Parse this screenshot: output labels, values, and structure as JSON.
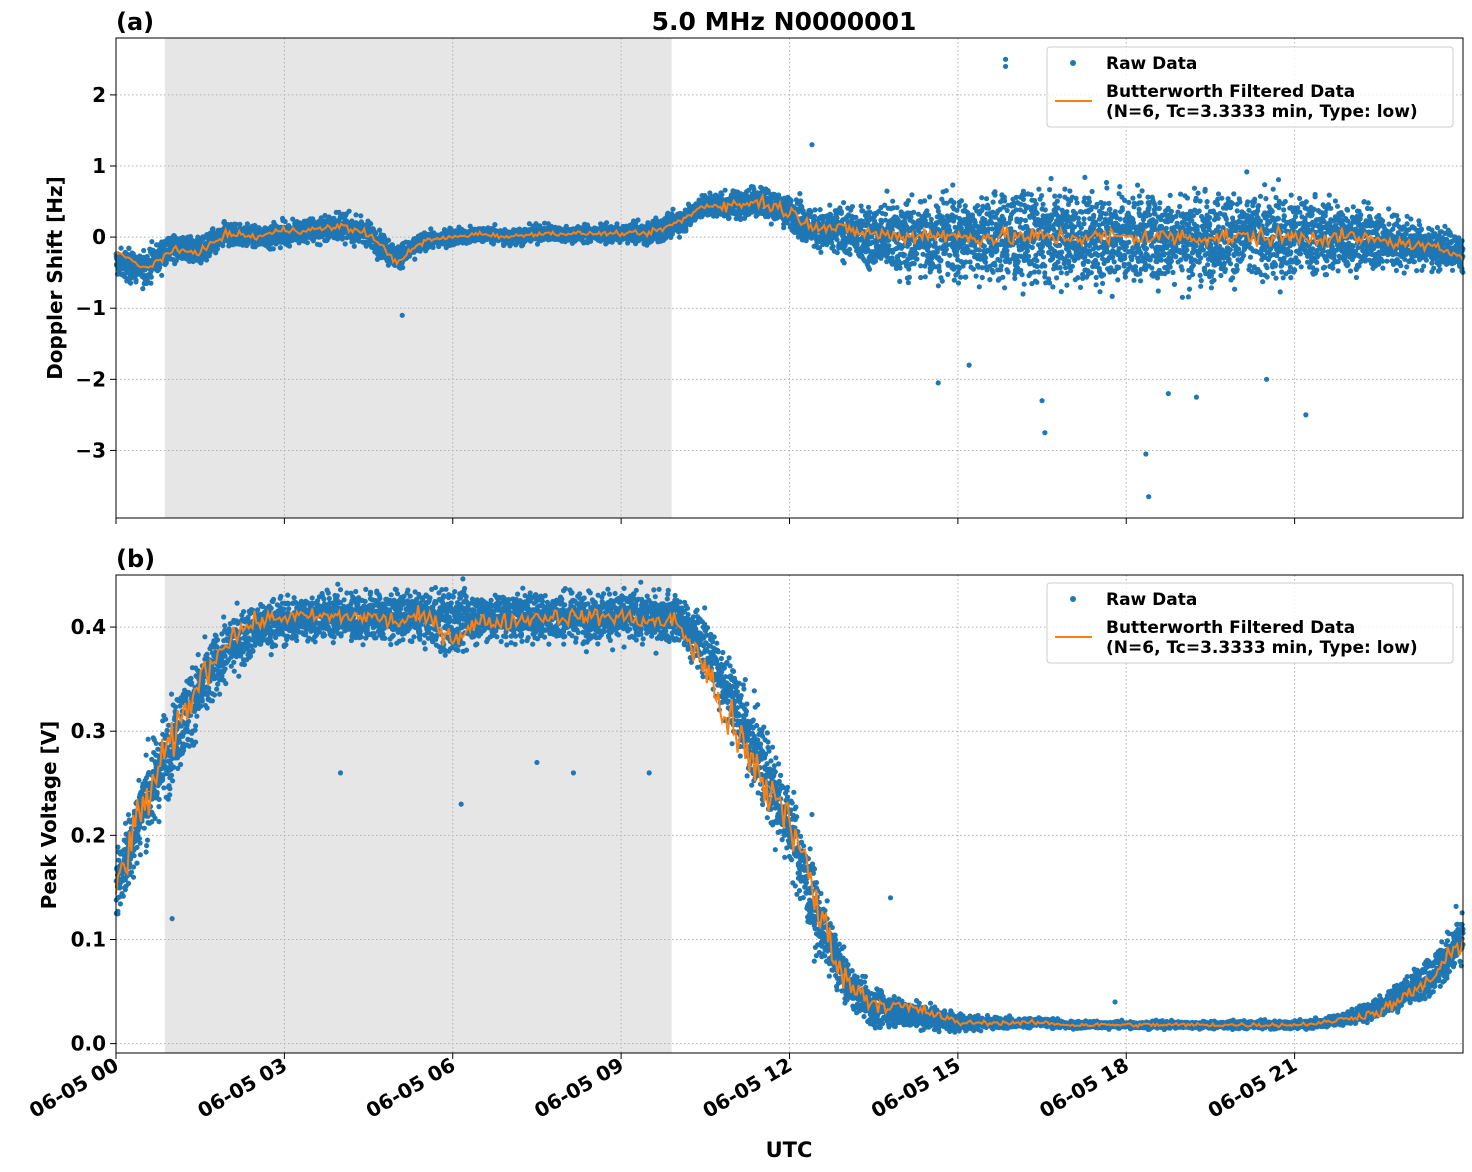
{
  "figure": {
    "title": "5.0 MHz N0000001",
    "xlabel": "UTC",
    "shade_label": ""
  },
  "colors": {
    "raw": "#1f77b4",
    "filtered": "#ff7f0e",
    "shade": "#e6e6e6",
    "grid": "#b0b0b0"
  },
  "chart_data": [
    {
      "type": "scatter",
      "panel_label": "(a)",
      "title": "5.0 MHz N0000001",
      "xlabel": "",
      "ylabel": "Doppler Shift [Hz]",
      "x_unit": "hours UTC",
      "xlim": [
        0,
        24
      ],
      "ylim": [
        -3.95,
        2.8
      ],
      "yticks": [
        2,
        1,
        0,
        -1,
        -2,
        -3
      ],
      "ytick_labels": [
        "2",
        "1",
        "0",
        "−1",
        "−2",
        "−3"
      ],
      "grid": true,
      "legend_position": "top-right",
      "shaded_interval": [
        0.87,
        9.9
      ],
      "series": [
        {
          "name": "Raw Data",
          "kind": "points",
          "x": [
            0,
            0.5,
            1,
            1.5,
            2,
            2.5,
            3,
            3.5,
            4,
            4.5,
            5,
            5.5,
            6,
            6.5,
            7,
            7.5,
            8,
            8.5,
            9,
            9.5,
            10,
            10.5,
            11,
            11.5,
            12,
            12.5,
            13,
            13.5,
            14,
            14.5,
            15,
            15.5,
            16,
            16.5,
            17,
            17.5,
            18,
            18.5,
            19,
            19.5,
            20,
            20.5,
            21,
            21.5,
            22,
            22.5,
            23,
            23.5,
            24
          ],
          "center": [
            -0.35,
            -0.45,
            -0.15,
            -0.2,
            0.05,
            0.0,
            0.05,
            0.1,
            0.15,
            0.05,
            -0.3,
            -0.05,
            0.0,
            0.05,
            0.0,
            0.05,
            0.05,
            0.05,
            0.05,
            0.05,
            0.2,
            0.45,
            0.45,
            0.5,
            0.35,
            0.1,
            0.05,
            0.0,
            0.0,
            0.0,
            0.0,
            0.0,
            0.0,
            0.0,
            0.0,
            0.0,
            0.0,
            0.0,
            0.0,
            0.0,
            0.0,
            0.0,
            0.0,
            0.0,
            0.0,
            -0.05,
            -0.1,
            -0.15,
            -0.25
          ],
          "spread": [
            0.35,
            0.4,
            0.3,
            0.3,
            0.3,
            0.25,
            0.3,
            0.3,
            0.35,
            0.3,
            0.3,
            0.2,
            0.2,
            0.2,
            0.2,
            0.2,
            0.2,
            0.2,
            0.2,
            0.25,
            0.3,
            0.3,
            0.35,
            0.4,
            0.4,
            0.5,
            0.6,
            0.75,
            0.9,
            1.0,
            1.1,
            1.1,
            1.1,
            1.1,
            1.1,
            1.1,
            1.1,
            1.1,
            1.1,
            1.1,
            1.1,
            1.05,
            1.0,
            0.95,
            0.85,
            0.7,
            0.6,
            0.5,
            0.45
          ],
          "outliers": [
            [
              15.85,
              2.5
            ],
            [
              15.85,
              2.4
            ],
            [
              16.55,
              -2.75
            ],
            [
              16.5,
              -2.3
            ],
            [
              18.35,
              -3.05
            ],
            [
              18.4,
              -3.65
            ],
            [
              18.75,
              -2.2
            ],
            [
              19.25,
              -2.25
            ],
            [
              20.5,
              -2.0
            ],
            [
              21.2,
              -2.5
            ],
            [
              14.65,
              -2.05
            ],
            [
              12.4,
              1.3
            ],
            [
              5.1,
              -1.1
            ],
            [
              15.2,
              -1.8
            ]
          ]
        },
        {
          "name": "Butterworth Filtered Data\n(N=6, Tc=3.3333 min, Type: low)",
          "kind": "line",
          "x": [
            0,
            0.5,
            1,
            1.5,
            2,
            2.5,
            3,
            3.5,
            4,
            4.5,
            5,
            5.5,
            6,
            6.5,
            7,
            7.5,
            8,
            8.5,
            9,
            9.5,
            10,
            10.5,
            11,
            11.5,
            12,
            12.5,
            13,
            13.5,
            14,
            14.5,
            15,
            15.5,
            16,
            16.5,
            17,
            17.5,
            18,
            18.5,
            19,
            19.5,
            20,
            20.5,
            21,
            21.5,
            22,
            22.5,
            23,
            23.5,
            24
          ],
          "y": [
            -0.2,
            -0.45,
            -0.2,
            -0.2,
            0.05,
            0.0,
            0.1,
            0.1,
            0.15,
            0.05,
            -0.35,
            -0.05,
            0.0,
            0.05,
            0.0,
            0.05,
            0.05,
            0.05,
            0.05,
            0.05,
            0.2,
            0.45,
            0.45,
            0.5,
            0.35,
            0.15,
            0.1,
            0.05,
            0.0,
            0.05,
            0.0,
            0.0,
            0.0,
            0.0,
            0.0,
            0.0,
            0.0,
            0.0,
            0.0,
            0.0,
            0.0,
            0.0,
            0.0,
            0.0,
            0.0,
            -0.05,
            -0.1,
            -0.15,
            -0.25
          ],
          "noise": [
            0.05,
            0.06,
            0.05,
            0.05,
            0.05,
            0.05,
            0.05,
            0.05,
            0.06,
            0.05,
            0.05,
            0.04,
            0.03,
            0.03,
            0.03,
            0.03,
            0.03,
            0.03,
            0.03,
            0.04,
            0.05,
            0.06,
            0.08,
            0.1,
            0.1,
            0.1,
            0.1,
            0.1,
            0.12,
            0.13,
            0.13,
            0.13,
            0.13,
            0.13,
            0.13,
            0.13,
            0.13,
            0.13,
            0.13,
            0.13,
            0.13,
            0.13,
            0.13,
            0.12,
            0.1,
            0.08,
            0.07,
            0.06,
            0.06
          ]
        }
      ]
    },
    {
      "type": "scatter",
      "panel_label": "(b)",
      "title": "",
      "xlabel": "UTC",
      "ylabel": "Peak Voltage [V]",
      "x_unit": "hours UTC",
      "xlim": [
        0,
        24
      ],
      "ylim": [
        -0.009,
        0.45
      ],
      "yticks": [
        0.4,
        0.3,
        0.2,
        0.1,
        0.0
      ],
      "ytick_labels": [
        "0.4",
        "0.3",
        "0.2",
        "0.1",
        "0.0"
      ],
      "xticks": [
        0,
        3,
        6,
        9,
        12,
        15,
        18,
        21
      ],
      "xtick_labels": [
        "06-05 00",
        "06-05 03",
        "06-05 06",
        "06-05 09",
        "06-05 12",
        "06-05 15",
        "06-05 18",
        "06-05 21"
      ],
      "grid": true,
      "legend_position": "top-right",
      "shaded_interval": [
        0.87,
        9.9
      ],
      "series": [
        {
          "name": "Raw Data",
          "kind": "points",
          "x": [
            0,
            0.5,
            1,
            1.5,
            2,
            2.5,
            3,
            3.5,
            4,
            4.5,
            5,
            5.5,
            6,
            6.5,
            7,
            7.5,
            8,
            8.5,
            9,
            9.5,
            10,
            10.5,
            11,
            11.5,
            12,
            12.5,
            13,
            13.5,
            14,
            14.5,
            15,
            15.5,
            16,
            16.5,
            17,
            17.5,
            18,
            18.5,
            19,
            19.5,
            20,
            20.5,
            21,
            21.5,
            22,
            22.5,
            23,
            23.5,
            24
          ],
          "center": [
            0.15,
            0.23,
            0.29,
            0.34,
            0.38,
            0.4,
            0.405,
            0.41,
            0.41,
            0.41,
            0.41,
            0.41,
            0.405,
            0.41,
            0.41,
            0.41,
            0.41,
            0.41,
            0.41,
            0.41,
            0.41,
            0.38,
            0.33,
            0.27,
            0.21,
            0.12,
            0.06,
            0.035,
            0.03,
            0.025,
            0.02,
            0.02,
            0.02,
            0.02,
            0.018,
            0.018,
            0.018,
            0.018,
            0.018,
            0.018,
            0.018,
            0.018,
            0.018,
            0.02,
            0.025,
            0.035,
            0.05,
            0.07,
            0.1
          ],
          "spread": [
            0.06,
            0.07,
            0.07,
            0.06,
            0.05,
            0.04,
            0.04,
            0.035,
            0.04,
            0.04,
            0.04,
            0.04,
            0.06,
            0.04,
            0.04,
            0.04,
            0.04,
            0.04,
            0.04,
            0.04,
            0.04,
            0.05,
            0.06,
            0.07,
            0.07,
            0.06,
            0.035,
            0.03,
            0.025,
            0.02,
            0.015,
            0.01,
            0.008,
            0.007,
            0.006,
            0.006,
            0.006,
            0.006,
            0.006,
            0.006,
            0.006,
            0.006,
            0.006,
            0.008,
            0.012,
            0.018,
            0.025,
            0.035,
            0.05
          ],
          "outliers": [
            [
              6.15,
              0.23
            ],
            [
              7.5,
              0.27
            ],
            [
              8.15,
              0.26
            ],
            [
              9.5,
              0.26
            ],
            [
              4.0,
              0.26
            ],
            [
              1.0,
              0.12
            ],
            [
              12.4,
              0.22
            ],
            [
              11.7,
              0.21
            ],
            [
              13.8,
              0.14
            ],
            [
              17.8,
              0.04
            ]
          ]
        },
        {
          "name": "Butterworth Filtered Data\n(N=6, Tc=3.3333 min, Type: low)",
          "kind": "line",
          "x": [
            0,
            0.5,
            1,
            1.5,
            2,
            2.5,
            3,
            3.5,
            4,
            4.5,
            5,
            5.5,
            6,
            6.5,
            7,
            7.5,
            8,
            8.5,
            9,
            9.5,
            10,
            10.5,
            11,
            11.5,
            12,
            12.5,
            13,
            13.5,
            14,
            14.5,
            15,
            15.5,
            16,
            16.5,
            17,
            17.5,
            18,
            18.5,
            19,
            19.5,
            20,
            20.5,
            21,
            21.5,
            22,
            22.5,
            23,
            23.5,
            24
          ],
          "y": [
            0.15,
            0.23,
            0.29,
            0.35,
            0.39,
            0.405,
            0.41,
            0.41,
            0.41,
            0.41,
            0.405,
            0.41,
            0.39,
            0.405,
            0.405,
            0.41,
            0.41,
            0.41,
            0.41,
            0.405,
            0.405,
            0.36,
            0.3,
            0.25,
            0.22,
            0.13,
            0.06,
            0.04,
            0.035,
            0.03,
            0.02,
            0.02,
            0.02,
            0.02,
            0.018,
            0.018,
            0.018,
            0.018,
            0.018,
            0.018,
            0.018,
            0.018,
            0.018,
            0.02,
            0.025,
            0.03,
            0.045,
            0.065,
            0.1
          ],
          "noise": [
            0.02,
            0.025,
            0.02,
            0.015,
            0.012,
            0.008,
            0.007,
            0.007,
            0.008,
            0.008,
            0.01,
            0.008,
            0.012,
            0.008,
            0.008,
            0.008,
            0.008,
            0.008,
            0.008,
            0.008,
            0.01,
            0.02,
            0.025,
            0.03,
            0.03,
            0.025,
            0.012,
            0.01,
            0.008,
            0.006,
            0.003,
            0.002,
            0.002,
            0.002,
            0.002,
            0.002,
            0.002,
            0.002,
            0.002,
            0.002,
            0.002,
            0.002,
            0.002,
            0.002,
            0.003,
            0.005,
            0.008,
            0.01,
            0.012
          ]
        }
      ]
    }
  ]
}
